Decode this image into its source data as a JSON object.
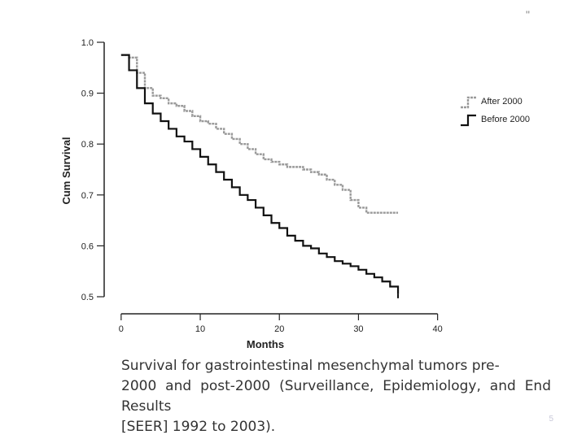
{
  "chart_data": {
    "type": "line",
    "step": true,
    "title": "",
    "xlabel": "Months",
    "ylabel": "Cum Survival",
    "xlim": [
      -2,
      40
    ],
    "ylim": [
      0.5,
      1.0
    ],
    "xticks": [
      0,
      10,
      20,
      30,
      40
    ],
    "yticks": [
      0.5,
      0.6,
      0.7,
      0.8,
      0.9,
      1.0
    ],
    "yticklabels": [
      "0.5",
      "0.6",
      "0.7",
      "0.8",
      "0.9",
      "1.0"
    ],
    "legend_position": "right",
    "series": [
      {
        "name": "After 2000",
        "color": "#9a9a9a",
        "x": [
          0,
          1,
          2,
          3,
          4,
          5,
          6,
          7,
          8,
          9,
          10,
          11,
          12,
          13,
          14,
          15,
          16,
          17,
          18,
          19,
          20,
          21,
          22,
          23,
          24,
          25,
          26,
          27,
          28,
          29,
          30,
          31,
          32,
          33,
          34,
          35
        ],
        "y": [
          0.975,
          0.97,
          0.94,
          0.91,
          0.895,
          0.89,
          0.88,
          0.875,
          0.865,
          0.855,
          0.845,
          0.84,
          0.83,
          0.82,
          0.81,
          0.8,
          0.79,
          0.78,
          0.77,
          0.765,
          0.76,
          0.755,
          0.755,
          0.75,
          0.745,
          0.74,
          0.73,
          0.72,
          0.71,
          0.69,
          0.675,
          0.665,
          0.665,
          0.665,
          0.665,
          0.665
        ]
      },
      {
        "name": "Before 2000",
        "color": "#111111",
        "x": [
          0,
          1,
          2,
          3,
          4,
          5,
          6,
          7,
          8,
          9,
          10,
          11,
          12,
          13,
          14,
          15,
          16,
          17,
          18,
          19,
          20,
          21,
          22,
          23,
          24,
          25,
          26,
          27,
          28,
          29,
          30,
          31,
          32,
          33,
          34,
          35
        ],
        "y": [
          0.975,
          0.945,
          0.91,
          0.88,
          0.86,
          0.845,
          0.83,
          0.815,
          0.805,
          0.79,
          0.775,
          0.76,
          0.745,
          0.73,
          0.715,
          0.7,
          0.69,
          0.675,
          0.66,
          0.645,
          0.635,
          0.62,
          0.61,
          0.6,
          0.595,
          0.585,
          0.578,
          0.57,
          0.565,
          0.56,
          0.553,
          0.545,
          0.538,
          0.53,
          0.52,
          0.505
        ]
      }
    ]
  },
  "caption": {
    "line1": "Survival for gastrointestinal mesenchymal tumors pre-",
    "line2": "2000 and post-2000 (Surveillance, Epidemiology, and End Results",
    "line3": "[SEER] 1992 to 2003)."
  },
  "slide_number": "5",
  "corner_mark": "\""
}
